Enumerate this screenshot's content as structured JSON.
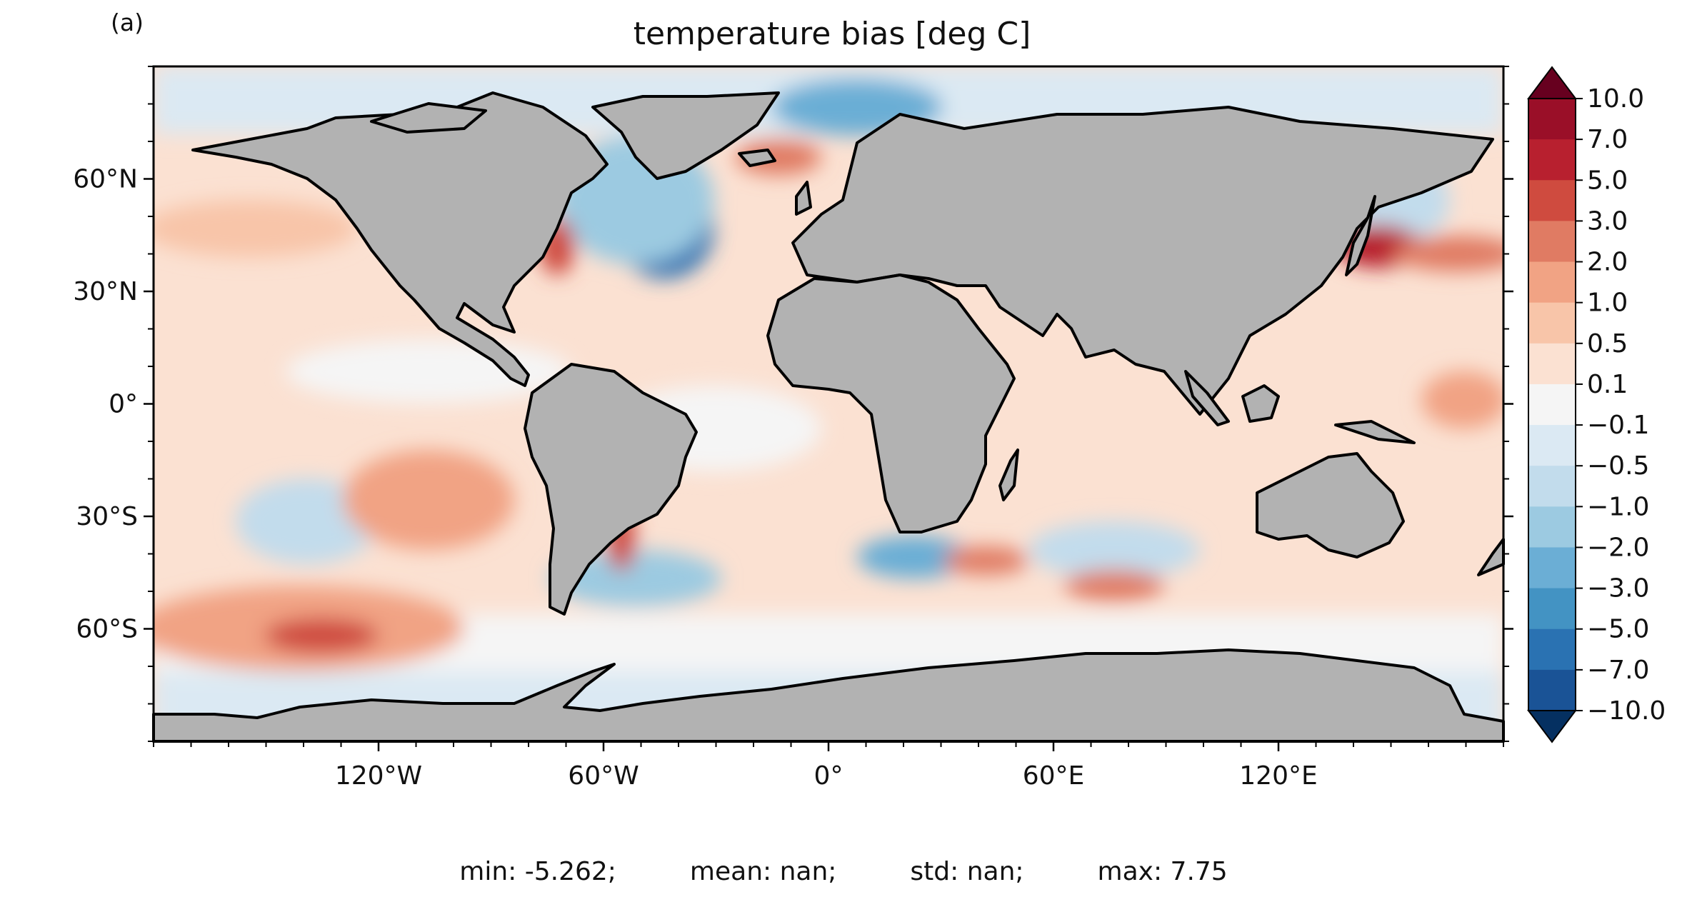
{
  "panel_label": "(a)",
  "chart_data": {
    "type": "heatmap",
    "title": "temperature bias [deg C]",
    "xlabel": "",
    "ylabel": "",
    "x_ticks": [
      "120°W",
      "60°W",
      "0°",
      "60°E",
      "120°E"
    ],
    "x_tick_values": [
      -120,
      -60,
      0,
      60,
      120
    ],
    "y_ticks": [
      "60°N",
      "30°N",
      "0°",
      "30°S",
      "60°S"
    ],
    "y_tick_values": [
      60,
      30,
      0,
      -30,
      -60
    ],
    "xlim": [
      -180,
      180
    ],
    "ylim": [
      -90,
      90
    ],
    "colorbar": {
      "levels": [
        "10.0",
        "7.0",
        "5.0",
        "3.0",
        "2.0",
        "1.0",
        "0.5",
        "0.1",
        "−0.1",
        "−0.5",
        "−1.0",
        "−2.0",
        "−3.0",
        "−5.0",
        "−7.0",
        "−10.0"
      ],
      "extend": "both",
      "colors": [
        "#9a0f28",
        "#b8202f",
        "#cf4b3f",
        "#e07b63",
        "#f1a384",
        "#f8c5a9",
        "#fbe1d2",
        "#f5f5f5",
        "#dbe9f3",
        "#c2dcec",
        "#9ccae1",
        "#6baed5",
        "#4393c3",
        "#2a72b2",
        "#1a5396"
      ],
      "over_color": "#67001f",
      "under_color": "#053061"
    },
    "land_color": "#b2b2b2",
    "stats": {
      "min": "min: -5.262;",
      "mean": "mean: nan;",
      "std": "std: nan;",
      "max": "max: 7.75"
    }
  }
}
